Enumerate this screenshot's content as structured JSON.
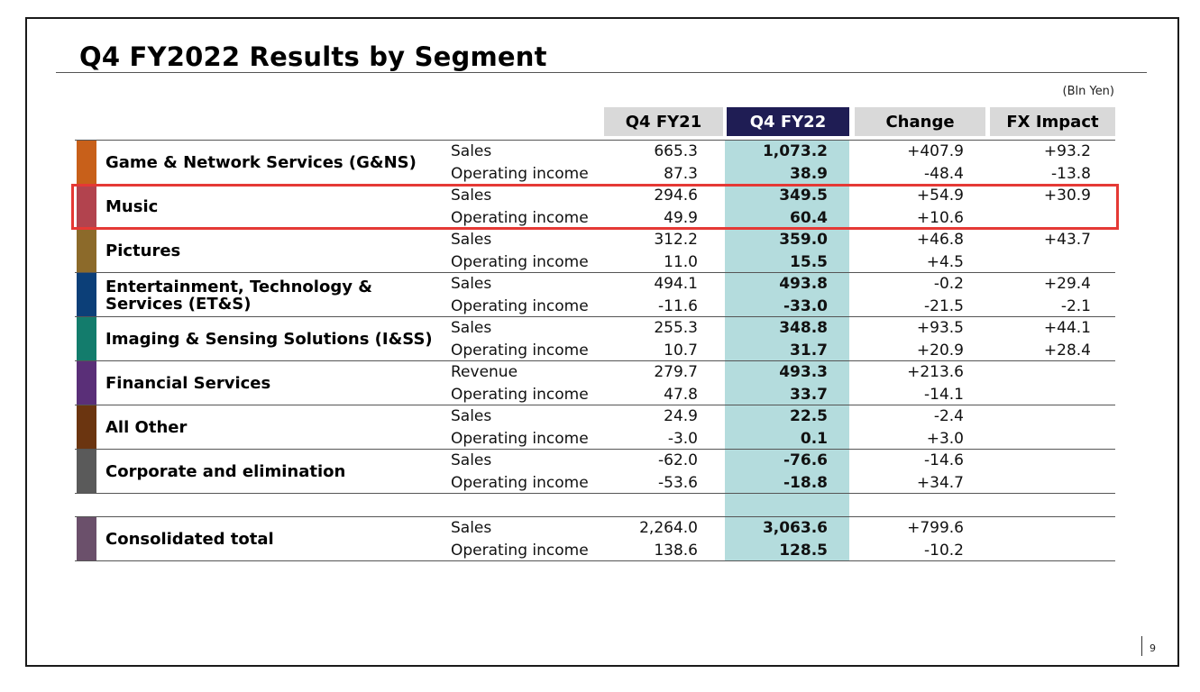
{
  "title": "Q4 FY2022 Results by Segment",
  "unit": "(Bln Yen)",
  "columns": {
    "fy21": "Q4 FY21",
    "fy22": "Q4 FY22",
    "change": "Change",
    "fx": "FX Impact"
  },
  "colors": {
    "highlight_header": "#1f1d54",
    "highlight_column": "#b4dcdd",
    "selection_box": "#e53935"
  },
  "segments": [
    {
      "name": "Game & Network Services (G&NS)",
      "color": "#c8601a",
      "rows": [
        {
          "label": "Sales",
          "fy21": "665.3",
          "fy22": "1,073.2",
          "change": "+407.9",
          "fx": "+93.2"
        },
        {
          "label": "Operating income",
          "fy21": "87.3",
          "fy22": "38.9",
          "change": "-48.4",
          "fx": "-13.8"
        }
      ]
    },
    {
      "name": "Music",
      "color": "#b2434e",
      "rows": [
        {
          "label": "Sales",
          "fy21": "294.6",
          "fy22": "349.5",
          "change": "+54.9",
          "fx": "+30.9"
        },
        {
          "label": "Operating income",
          "fy21": "49.9",
          "fy22": "60.4",
          "change": "+10.6",
          "fx": ""
        }
      ]
    },
    {
      "name": "Pictures",
      "color": "#8c6a2a",
      "rows": [
        {
          "label": "Sales",
          "fy21": "312.2",
          "fy22": "359.0",
          "change": "+46.8",
          "fx": "+43.7"
        },
        {
          "label": "Operating income",
          "fy21": "11.0",
          "fy22": "15.5",
          "change": "+4.5",
          "fx": ""
        }
      ]
    },
    {
      "name": "Entertainment, Technology & Services (ET&S)",
      "color": "#0c3f78",
      "rows": [
        {
          "label": "Sales",
          "fy21": "494.1",
          "fy22": "493.8",
          "change": "-0.2",
          "fx": "+29.4"
        },
        {
          "label": "Operating income",
          "fy21": "-11.6",
          "fy22": "-33.0",
          "change": "-21.5",
          "fx": "-2.1"
        }
      ]
    },
    {
      "name": "Imaging & Sensing Solutions (I&SS)",
      "color": "#137c6c",
      "rows": [
        {
          "label": "Sales",
          "fy21": "255.3",
          "fy22": "348.8",
          "change": "+93.5",
          "fx": "+44.1"
        },
        {
          "label": "Operating income",
          "fy21": "10.7",
          "fy22": "31.7",
          "change": "+20.9",
          "fx": "+28.4"
        }
      ]
    },
    {
      "name": "Financial Services",
      "color": "#5a2f78",
      "rows": [
        {
          "label": "Revenue",
          "fy21": "279.7",
          "fy22": "493.3",
          "change": "+213.6",
          "fx": ""
        },
        {
          "label": "Operating income",
          "fy21": "47.8",
          "fy22": "33.7",
          "change": "-14.1",
          "fx": ""
        }
      ]
    },
    {
      "name": "All Other",
      "color": "#6b3510",
      "rows": [
        {
          "label": "Sales",
          "fy21": "24.9",
          "fy22": "22.5",
          "change": "-2.4",
          "fx": ""
        },
        {
          "label": "Operating income",
          "fy21": "-3.0",
          "fy22": "0.1",
          "change": "+3.0",
          "fx": ""
        }
      ]
    },
    {
      "name": "Corporate and elimination",
      "color": "#5a5a5a",
      "rows": [
        {
          "label": "Sales",
          "fy21": "-62.0",
          "fy22": "-76.6",
          "change": "-14.6",
          "fx": ""
        },
        {
          "label": "Operating income",
          "fy21": "-53.6",
          "fy22": "-18.8",
          "change": "+34.7",
          "fx": ""
        }
      ]
    }
  ],
  "total": {
    "name": "Consolidated total",
    "color": "#6b506b",
    "rows": [
      {
        "label": "Sales",
        "fy21": "2,264.0",
        "fy22": "3,063.6",
        "change": "+799.6",
        "fx": ""
      },
      {
        "label": "Operating income",
        "fy21": "138.6",
        "fy22": "128.5",
        "change": "-10.2",
        "fx": ""
      }
    ]
  },
  "page_number": "9"
}
